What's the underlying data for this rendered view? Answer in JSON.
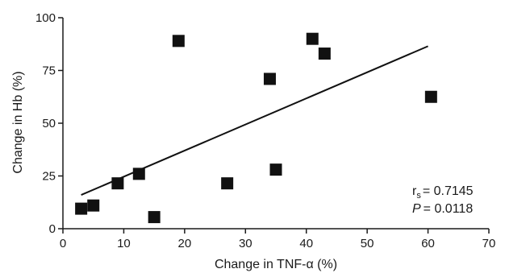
{
  "chart_data": {
    "type": "scatter",
    "title": "",
    "xlabel": "Change in TNF-α (%)",
    "ylabel": "Change in Hb (%)",
    "xlim": [
      0,
      70
    ],
    "ylim": [
      0,
      100
    ],
    "x_ticks": [
      0,
      10,
      20,
      30,
      40,
      50,
      60,
      70
    ],
    "y_ticks": [
      0,
      25,
      50,
      75,
      100
    ],
    "grid": false,
    "marker": "square",
    "marker_color": "#111111",
    "points": [
      {
        "x": 3.0,
        "y": 9.5
      },
      {
        "x": 5.0,
        "y": 11.0
      },
      {
        "x": 9.0,
        "y": 21.5
      },
      {
        "x": 12.5,
        "y": 26.0
      },
      {
        "x": 15.0,
        "y": 5.5
      },
      {
        "x": 19.0,
        "y": 89.0
      },
      {
        "x": 27.0,
        "y": 21.5
      },
      {
        "x": 34.0,
        "y": 71.0
      },
      {
        "x": 35.0,
        "y": 28.0
      },
      {
        "x": 41.0,
        "y": 90.0
      },
      {
        "x": 43.0,
        "y": 83.0
      },
      {
        "x": 60.5,
        "y": 62.5
      }
    ],
    "trendline": {
      "x": [
        3.0,
        60.0
      ],
      "y": [
        16.0,
        86.5
      ]
    },
    "annotation": {
      "rs_symbol": "r",
      "rs_subscript": "s",
      "rs_value": "= 0.7145",
      "p_symbol": "P",
      "p_value": "= 0.0118"
    }
  }
}
